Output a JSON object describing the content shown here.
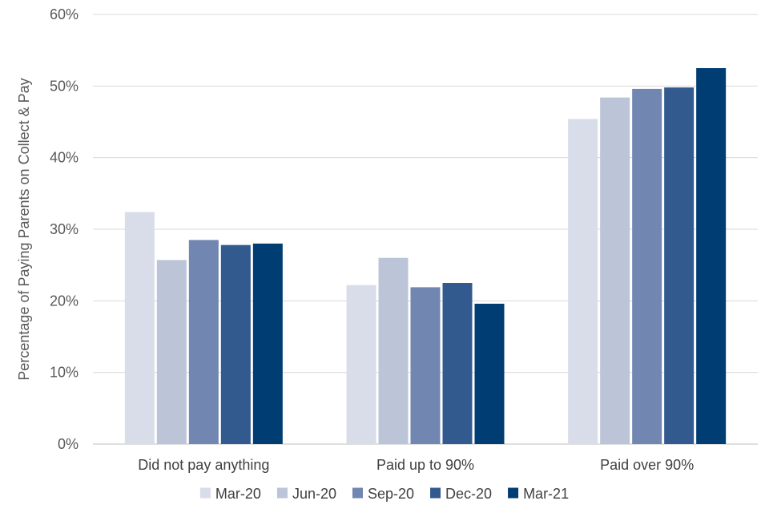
{
  "chart_data": {
    "type": "bar",
    "ylabel": "Percentage of Paying Parents on Collect & Pay",
    "categories": [
      "Did not pay anything",
      "Paid up to 90%",
      "Paid over 90%"
    ],
    "ylim": [
      0,
      60
    ],
    "yticks": [
      0,
      10,
      20,
      30,
      40,
      50,
      60
    ],
    "ytick_format": "percent",
    "grid": true,
    "legend_position": "bottom",
    "series": [
      {
        "name": "Mar-20",
        "color": "#d9dde9",
        "values": [
          32.4,
          22.2,
          45.4
        ]
      },
      {
        "name": "Jun-20",
        "color": "#bcc4d8",
        "values": [
          25.7,
          26.0,
          48.4
        ]
      },
      {
        "name": "Sep-20",
        "color": "#7186b0",
        "values": [
          28.5,
          21.9,
          49.6
        ]
      },
      {
        "name": "Dec-20",
        "color": "#335a8e",
        "values": [
          27.8,
          22.5,
          49.8
        ]
      },
      {
        "name": "Mar-21",
        "color": "#003d73",
        "values": [
          28.0,
          19.6,
          52.5
        ]
      }
    ]
  }
}
